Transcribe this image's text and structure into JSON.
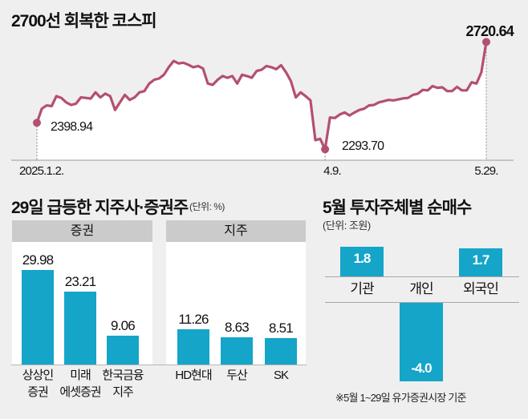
{
  "chart_data": [
    {
      "type": "line",
      "title": "2700선 회복한 코스피",
      "x_tick_labels": [
        "2025.1.2.",
        "4.9.",
        "5.29."
      ],
      "annotations": [
        {
          "date": "2025.1.2.",
          "value": 2398.94,
          "label": "2398.94"
        },
        {
          "date": "4.9.",
          "value": 2293.7,
          "label": "2293.70"
        },
        {
          "date": "5.29.",
          "value": 2720.64,
          "label": "2720.64"
        }
      ],
      "ylim": [
        2250,
        2760
      ],
      "series": [
        {
          "name": "코스피",
          "color": "#b4506e",
          "values": [
            2398.94,
            2455,
            2468,
            2465,
            2505,
            2498,
            2480,
            2470,
            2475,
            2500,
            2498,
            2495,
            2520,
            2500,
            2515,
            2505,
            2450,
            2480,
            2510,
            2490,
            2500,
            2520,
            2525,
            2555,
            2570,
            2575,
            2590,
            2620,
            2645,
            2635,
            2638,
            2630,
            2620,
            2625,
            2615,
            2555,
            2550,
            2570,
            2585,
            2578,
            2585,
            2555,
            2590,
            2585,
            2578,
            2605,
            2610,
            2625,
            2620,
            2612,
            2628,
            2600,
            2565,
            2500,
            2520,
            2505,
            2488,
            2330,
            2335,
            2293.7,
            2420,
            2418,
            2432,
            2440,
            2428,
            2440,
            2450,
            2455,
            2468,
            2470,
            2480,
            2485,
            2490,
            2488,
            2492,
            2496,
            2498,
            2510,
            2515,
            2530,
            2528,
            2545,
            2538,
            2540,
            2525,
            2525,
            2542,
            2528,
            2528,
            2560,
            2555,
            2600,
            2720.64
          ]
        }
      ]
    },
    {
      "type": "bar",
      "title": "29일 급등한 지주사·증권주",
      "unit": "(단위: %)",
      "groups": [
        {
          "name": "증권",
          "categories": [
            [
              "상상인",
              "증권"
            ],
            [
              "미래",
              "에셋증권"
            ],
            [
              "한국금융",
              "지주"
            ]
          ],
          "values": [
            29.98,
            23.21,
            9.06
          ],
          "labels": [
            "29.98",
            "23.21",
            "9.06"
          ]
        },
        {
          "name": "지주",
          "categories": [
            [
              "HD현대"
            ],
            [
              "두산"
            ],
            [
              "SK"
            ]
          ],
          "values": [
            11.26,
            8.63,
            8.51
          ],
          "labels": [
            "11.26",
            "8.63",
            "8.51"
          ]
        }
      ],
      "ylim": [
        0,
        34
      ],
      "color": "#14a5c9"
    },
    {
      "type": "bar",
      "title": "5월 투자주체별 순매수",
      "unit": "(단위: 조원)",
      "categories": [
        "기관",
        "개인",
        "외국인"
      ],
      "values": [
        1.8,
        -4.0,
        1.7
      ],
      "labels": [
        "1.8",
        "-4.0",
        "1.7"
      ],
      "note": "※5월 1~29일 유가증권시장 기준",
      "color": "#14a5c9"
    }
  ],
  "colors": {
    "background": "#efefef",
    "line": "#b4506e",
    "bar": "#14a5c9",
    "panel_header": "#cbcbcb"
  }
}
